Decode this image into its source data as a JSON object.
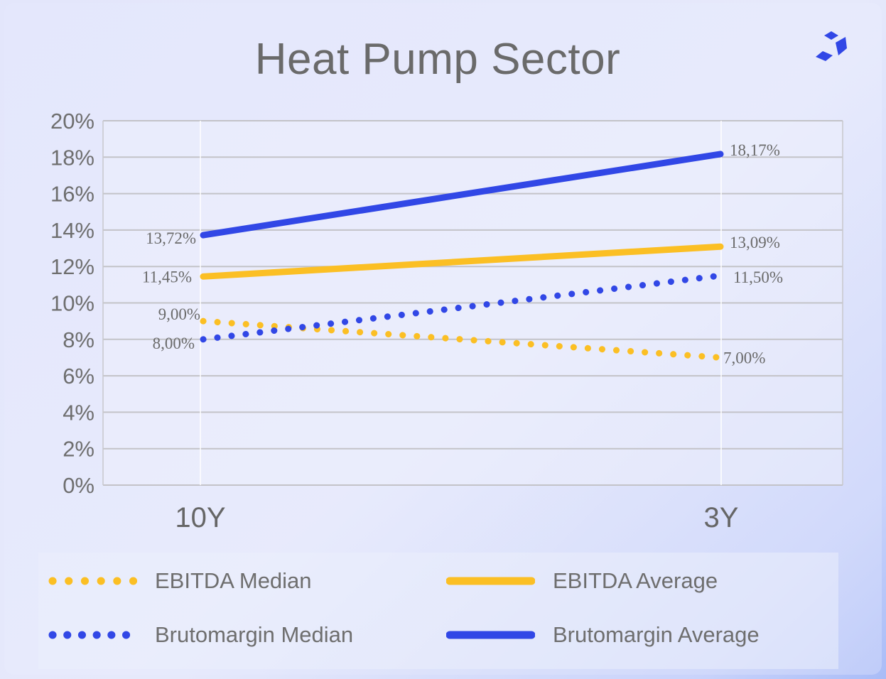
{
  "chart_data": {
    "type": "line",
    "title": "Heat Pump Sector",
    "categories": [
      "10Y",
      "3Y"
    ],
    "y_ticks": [
      "0%",
      "2%",
      "4%",
      "6%",
      "8%",
      "10%",
      "12%",
      "14%",
      "16%",
      "18%",
      "20%"
    ],
    "ylim": [
      0,
      20
    ],
    "grid": true,
    "legend_position": "bottom",
    "series": [
      {
        "name": "EBITDA Median",
        "values": [
          9.0,
          7.0
        ],
        "labels": [
          "9,00%",
          "7,00%"
        ],
        "style": "dotted",
        "color": "#fbbf24"
      },
      {
        "name": "EBITDA Average",
        "values": [
          11.45,
          13.09
        ],
        "labels": [
          "11,45%",
          "13,09%"
        ],
        "style": "solid",
        "color": "#fbbf24"
      },
      {
        "name": "Brutomargin Median",
        "values": [
          8.0,
          11.5
        ],
        "labels": [
          "8,00%",
          "11,50%"
        ],
        "style": "dotted",
        "color": "#3147e6"
      },
      {
        "name": "Brutomargin Average",
        "values": [
          13.72,
          18.17
        ],
        "labels": [
          "13,72%",
          "18,17%"
        ],
        "style": "solid",
        "color": "#3147e6"
      }
    ]
  },
  "legend": {
    "ebitda_median": "EBITDA Median",
    "ebitda_average": "EBITDA Average",
    "brutomargin_median": "Brutomargin Median",
    "brutomargin_average": "Brutomargin Average"
  },
  "logo": {
    "icon": "cube-logo-icon",
    "color": "#3147e6"
  }
}
